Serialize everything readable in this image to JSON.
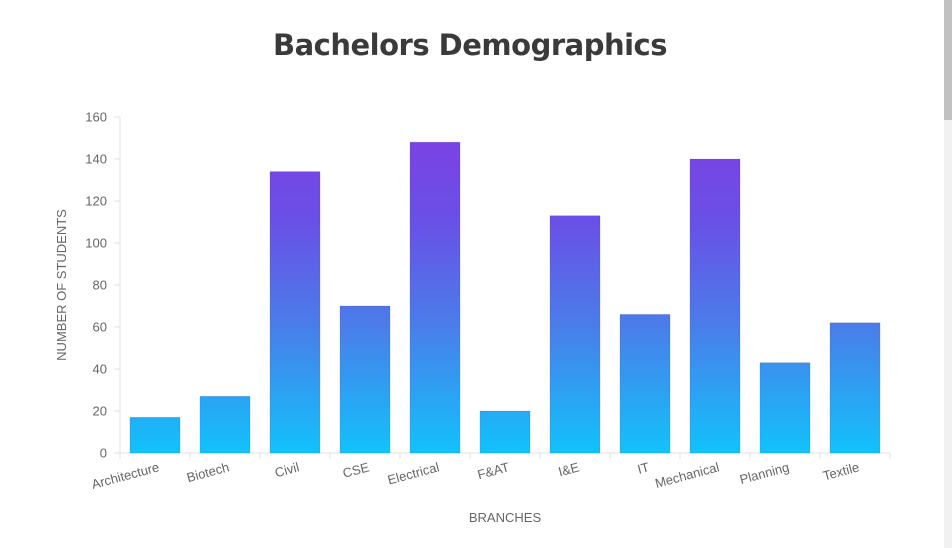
{
  "chart_data": {
    "type": "bar",
    "title": "Bachelors Demographics",
    "xlabel": "BRANCHES",
    "ylabel": "NUMBER OF STUDENTS",
    "categories": [
      "Architecture",
      "Biotech",
      "Civil",
      "CSE",
      "Electrical",
      "F&AT",
      "I&E",
      "IT",
      "Mechanical",
      "Planning",
      "Textile"
    ],
    "values": [
      17,
      27,
      134,
      70,
      148,
      20,
      113,
      66,
      140,
      43,
      62
    ],
    "ylim": [
      0,
      160
    ],
    "yticks": [
      "0",
      "20",
      "40",
      "60",
      "80",
      "100",
      "120",
      "140",
      "160"
    ],
    "grid": false,
    "legend": "none",
    "colors": {
      "gradient_bottom": "#12c2fb",
      "gradient_top": "#7f3fe4",
      "axis": "#e0e0e0",
      "text": "#666666"
    }
  }
}
